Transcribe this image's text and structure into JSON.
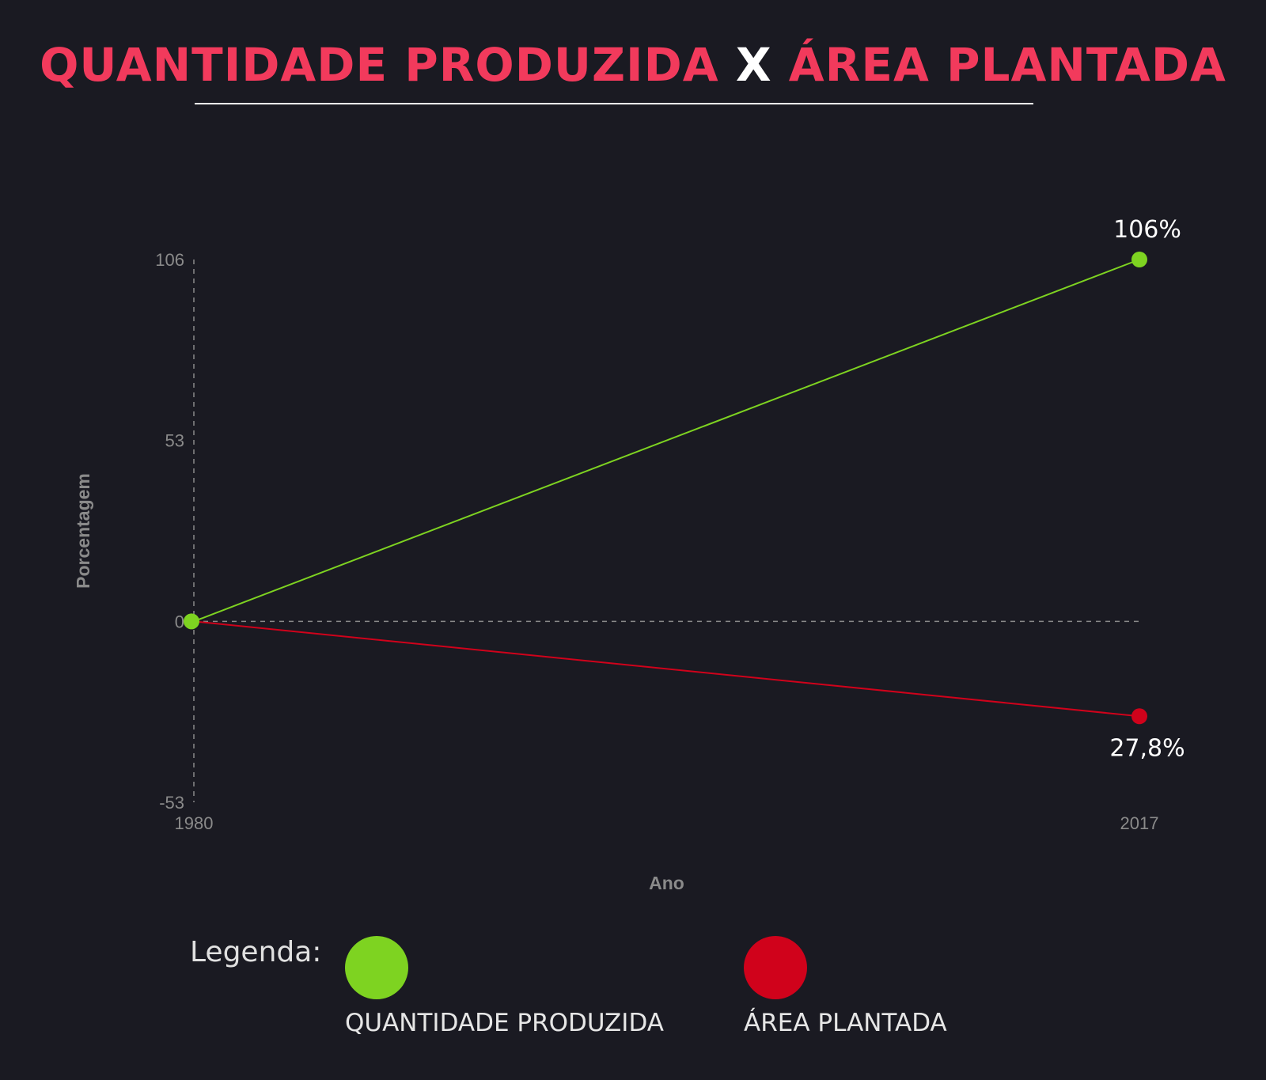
{
  "header": {
    "title_part1": "QUANTIDADE PRODUZIDA",
    "title_sep": "X",
    "title_part2": "ÁREA PLANTADA"
  },
  "legend": {
    "title": "Legenda:",
    "items": [
      {
        "label": "QUANTIDADE PRODUZIDA",
        "color": "#7ed321"
      },
      {
        "label": "ÁREA PLANTADA",
        "color": "#d0021b"
      }
    ]
  },
  "chart_data": {
    "type": "line",
    "x": [
      "1980",
      "2017"
    ],
    "xlabel": "Ano",
    "ylabel": "Porcentagem",
    "ylim": [
      -53,
      106
    ],
    "yticks": [
      "106",
      "53",
      "0",
      "-53"
    ],
    "grid": false,
    "legend_position": "bottom",
    "series": [
      {
        "name": "QUANTIDADE PRODUZIDA",
        "color": "#7ed321",
        "values": [
          0,
          106
        ],
        "end_label": "106%"
      },
      {
        "name": "ÁREA PLANTADA",
        "color": "#d0021b",
        "values": [
          0,
          -27.8
        ],
        "end_label": "27,8%"
      }
    ]
  }
}
